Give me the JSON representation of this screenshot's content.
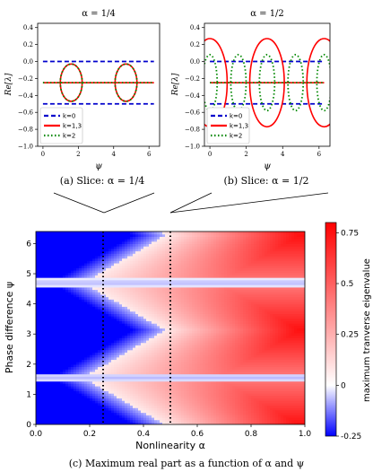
{
  "chart_data": [
    {
      "type": "line",
      "title": "α = 1/4",
      "caption": "(a) Slice: α = 1/4",
      "xlabel": "ψ",
      "ylabel": "Re[λ]",
      "xlim": [
        -0.3,
        6.6
      ],
      "ylim": [
        -1.0,
        0.45
      ],
      "xticks": [
        0,
        2,
        4,
        6
      ],
      "xtick_labels": [
        "0",
        "2",
        "4",
        "6"
      ],
      "yticks": [
        -1.0,
        -0.8,
        -0.6,
        -0.4,
        -0.2,
        0.0,
        0.2,
        0.4
      ],
      "ytick_labels": [
        "−1.0",
        "−0.8",
        "−0.6",
        "−0.4",
        "−0.2",
        "0.0",
        "0.2",
        "0.4"
      ],
      "legend_position": "lower-left",
      "series": [
        {
          "name": "k=0",
          "color": "#0000cc",
          "style": "dashed",
          "segments": [
            [
              [
                0,
                0.0
              ],
              [
                6.28,
                0.0
              ]
            ],
            [
              [
                0,
                -0.5
              ],
              [
                6.28,
                -0.5
              ]
            ]
          ]
        },
        {
          "name": "k=1,3",
          "color": "#ff0000",
          "style": "solid",
          "segments": [
            [
              [
                0,
                -0.25
              ],
              [
                6.28,
                -0.25
              ]
            ]
          ],
          "ellipses": [
            {
              "cx": 1.6,
              "rx": 0.62,
              "cy": -0.25,
              "ry": 0.22
            },
            {
              "cx": 4.7,
              "rx": 0.62,
              "cy": -0.25,
              "ry": 0.22
            }
          ]
        },
        {
          "name": "k=2",
          "color": "#008800",
          "style": "dotted",
          "segments": [
            [
              [
                0,
                -0.25
              ],
              [
                6.28,
                -0.25
              ]
            ]
          ],
          "ellipses": [
            {
              "cx": 1.6,
              "rx": 0.62,
              "cy": -0.25,
              "ry": 0.22
            },
            {
              "cx": 4.7,
              "rx": 0.62,
              "cy": -0.25,
              "ry": 0.22
            }
          ]
        }
      ]
    },
    {
      "type": "line",
      "title": "α = 1/2",
      "caption": "(b) Slice: α = 1/2",
      "xlabel": "ψ",
      "ylabel": "Re[λ]",
      "xlim": [
        -0.3,
        6.6
      ],
      "ylim": [
        -1.0,
        0.45
      ],
      "xticks": [
        0,
        2,
        4,
        6
      ],
      "xtick_labels": [
        "0",
        "2",
        "4",
        "6"
      ],
      "yticks": [
        -1.0,
        -0.8,
        -0.6,
        -0.4,
        -0.2,
        0.0,
        0.2,
        0.4
      ],
      "ytick_labels": [
        "−1.0",
        "−0.8",
        "−0.6",
        "−0.4",
        "−0.2",
        "0.0",
        "0.2",
        "0.4"
      ],
      "legend_position": "lower-left",
      "series": [
        {
          "name": "k=0",
          "color": "#0000cc",
          "style": "dashed",
          "segments": [
            [
              [
                0,
                0.0
              ],
              [
                6.28,
                0.0
              ]
            ],
            [
              [
                0,
                -0.5
              ],
              [
                6.28,
                -0.5
              ]
            ]
          ]
        },
        {
          "name": "k=1,3",
          "color": "#ff0000",
          "style": "solid",
          "segments": [
            [
              [
                0,
                -0.25
              ],
              [
                6.28,
                -0.25
              ]
            ]
          ],
          "ellipses": [
            {
              "cx": 0.0,
              "rx": 0.95,
              "cy": -0.25,
              "ry": 0.52,
              "half": "right"
            },
            {
              "cx": 3.14,
              "rx": 0.95,
              "cy": -0.25,
              "ry": 0.52
            },
            {
              "cx": 6.28,
              "rx": 0.95,
              "cy": -0.25,
              "ry": 0.52,
              "half": "left"
            }
          ]
        },
        {
          "name": "k=2",
          "color": "#008800",
          "style": "dotted",
          "segments": [
            [
              [
                0,
                -0.25
              ],
              [
                6.28,
                -0.25
              ]
            ]
          ],
          "ellipses": [
            {
              "cx": 0.0,
              "rx": 0.4,
              "cy": -0.25,
              "ry": 0.33,
              "half": "right"
            },
            {
              "cx": 1.57,
              "rx": 0.42,
              "cy": -0.25,
              "ry": 0.33
            },
            {
              "cx": 3.14,
              "rx": 0.42,
              "cy": -0.25,
              "ry": 0.33
            },
            {
              "cx": 4.71,
              "rx": 0.42,
              "cy": -0.25,
              "ry": 0.33
            },
            {
              "cx": 6.28,
              "rx": 0.4,
              "cy": -0.25,
              "ry": 0.33,
              "half": "left"
            }
          ]
        }
      ]
    },
    {
      "type": "heatmap",
      "caption": "(c) Maximum real part as a function of α and ψ",
      "xlabel": "Nonlinearity α",
      "ylabel": "Phase difference ψ",
      "xlim": [
        0.0,
        1.0
      ],
      "ylim": [
        0.0,
        6.4
      ],
      "xticks": [
        0.0,
        0.2,
        0.4,
        0.6,
        0.8,
        1.0
      ],
      "xtick_labels": [
        "0.0",
        "0.2",
        "0.4",
        "0.6",
        "0.8",
        "1.0"
      ],
      "yticks": [
        0,
        1,
        2,
        3,
        4,
        5,
        6
      ],
      "ytick_labels": [
        "0",
        "1",
        "2",
        "3",
        "4",
        "5",
        "6"
      ],
      "colorbar": {
        "label": "maximum tranverse eigenvalue",
        "range": [
          -0.25,
          0.8
        ],
        "ticks": [
          -0.25,
          0,
          0.25,
          0.5,
          0.75
        ],
        "tick_labels": [
          "-0.25",
          "0",
          "0.25",
          "0.5",
          "0.75"
        ],
        "colors": {
          "negative": "#0000ff",
          "zero": "#ffffff",
          "positive": "#ff0000"
        }
      },
      "vertical_markers": [
        0.25,
        0.5
      ],
      "marker_style": "dotted black"
    }
  ]
}
